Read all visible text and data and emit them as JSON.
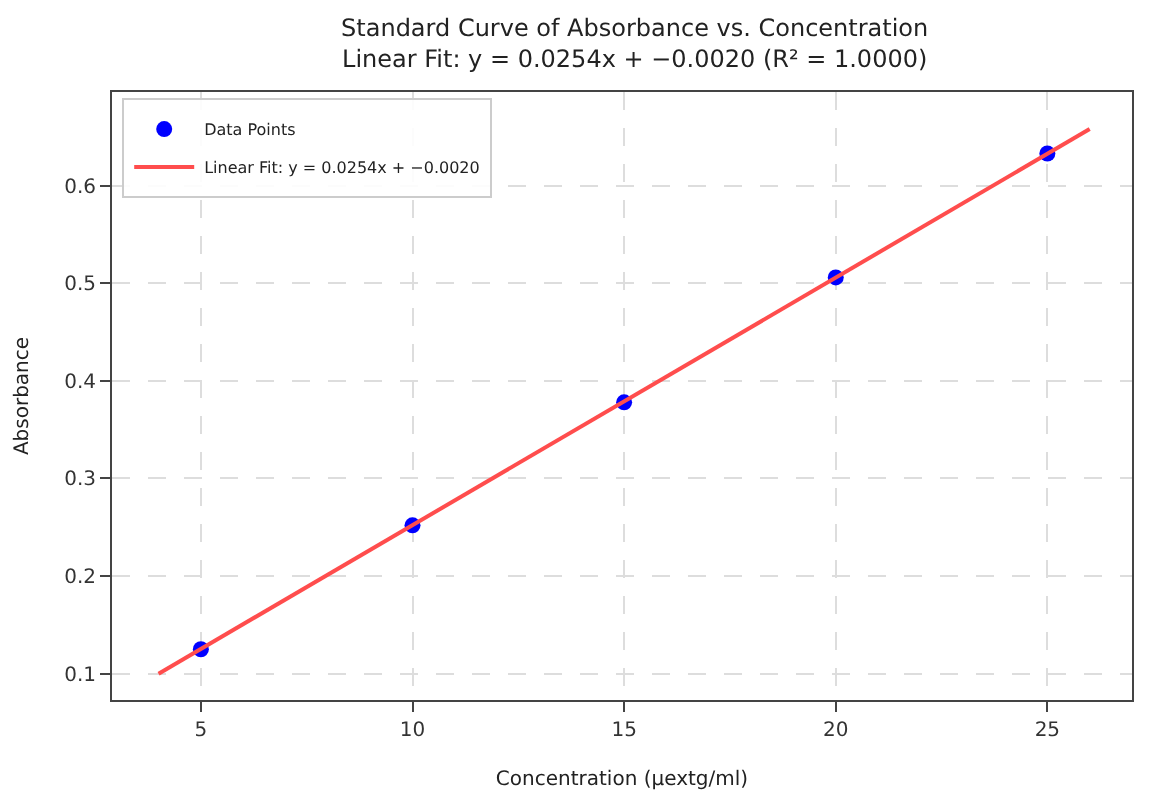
{
  "chart_data": {
    "type": "scatter",
    "title": "Standard Curve of Absorbance vs. Concentration",
    "subtitle": "Linear Fit: y = 0.0254x + −0.0020 (R² = 1.0000)",
    "xlabel": "Concentration (µextg/ml)",
    "ylabel": "Absorbance",
    "series": [
      {
        "name": "Data Points",
        "color": "#0000ff",
        "marker": "circle",
        "x": [
          5,
          10,
          15,
          20,
          25
        ],
        "values": [
          0.125,
          0.252,
          0.378,
          0.506,
          0.633
        ]
      },
      {
        "name": "Linear Fit: y = 0.0254x + −0.0020",
        "type": "line",
        "color": "#ff4d4d",
        "marker": "none",
        "line_style": "solid",
        "x": [
          4,
          26
        ],
        "values": [
          0.1,
          0.658
        ]
      }
    ],
    "xlim": [
      2.9,
      27.0
    ],
    "xticks": [
      5,
      10,
      15,
      20,
      25
    ],
    "ylim": [
      0.073,
      0.696
    ],
    "yticks": [
      0.1,
      0.2,
      0.3,
      0.4,
      0.5,
      0.6
    ],
    "grid": true,
    "legend": "top left"
  }
}
